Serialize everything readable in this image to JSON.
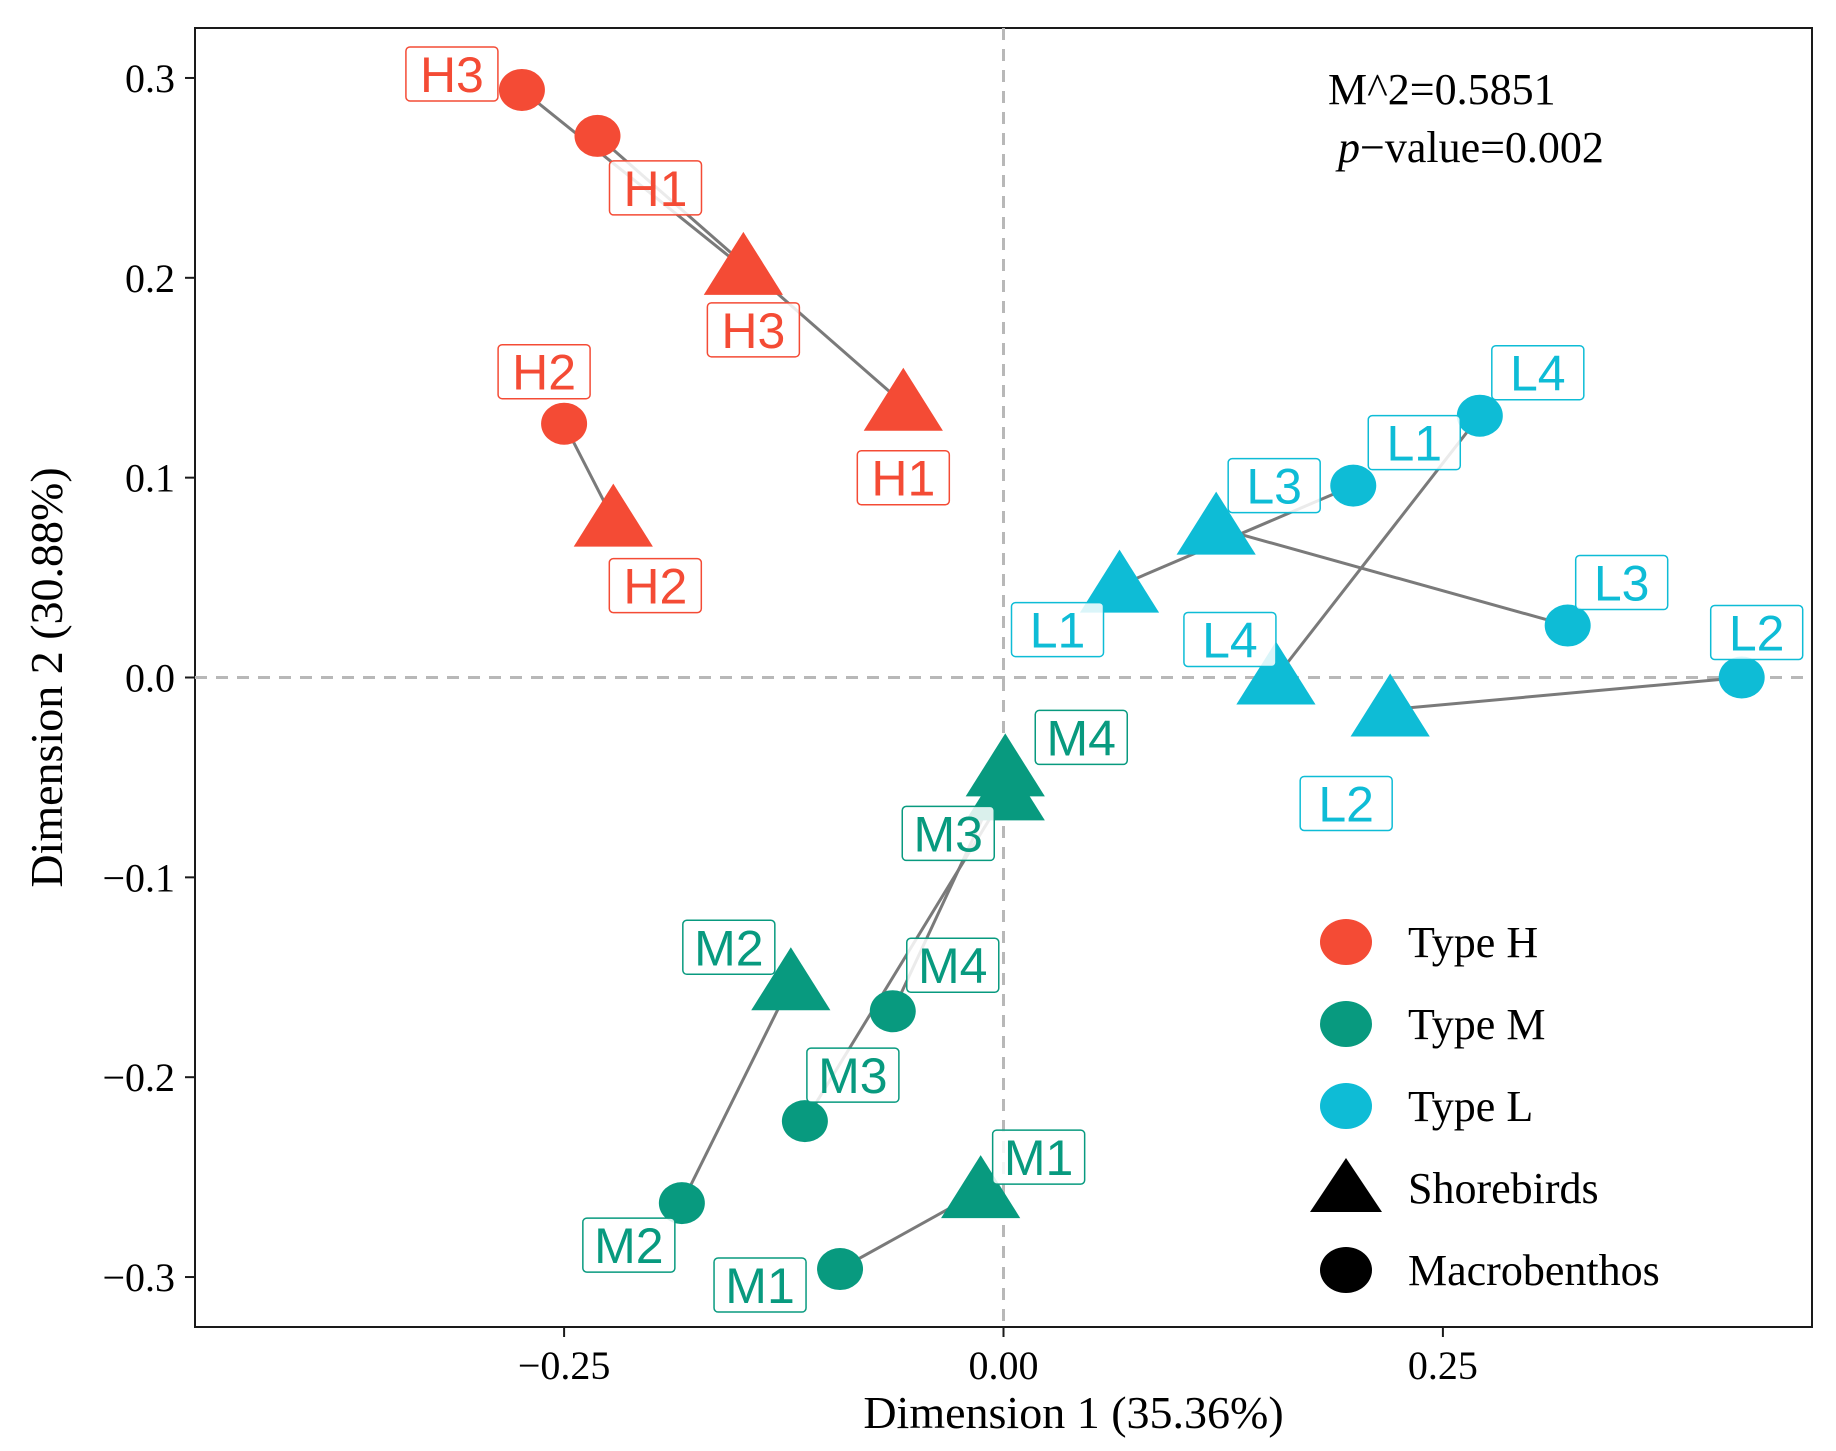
{
  "chart_data": {
    "type": "scatter",
    "title": "",
    "xlabel": "Dimension 1 (35.36%)",
    "ylabel": "Dimension 2 (30.88%)",
    "xlim": [
      -0.46,
      0.46
    ],
    "ylim": [
      -0.325,
      0.325
    ],
    "x_ticks": [
      -0.25,
      0.0,
      0.25
    ],
    "x_tick_labels": [
      "−0.25",
      "0.00",
      "0.25"
    ],
    "y_ticks": [
      -0.3,
      -0.2,
      -0.1,
      0.0,
      0.1,
      0.2,
      0.3
    ],
    "y_tick_labels": [
      "−0.3",
      "−0.2",
      "−0.1",
      "0.0",
      "0.1",
      "0.2",
      "0.3"
    ],
    "grid": false,
    "reference_lines": {
      "x": 0.0,
      "y": 0.0
    },
    "annotation": {
      "line1": "M^2=0.5851",
      "pvalue_italic": "p",
      "pvalue_rest": "−value=0.002"
    },
    "colors": {
      "H": "#f44b35",
      "M": "#089a7f",
      "L": "#0ebcd6"
    },
    "connector_color": "#7a7a7a",
    "legend": {
      "position": "bottom-right",
      "entries": [
        {
          "label": "Type H",
          "shape": "circle",
          "color": "#f44b35"
        },
        {
          "label": "Type M",
          "shape": "circle",
          "color": "#089a7f"
        },
        {
          "label": "Type L",
          "shape": "circle",
          "color": "#0ebcd6"
        },
        {
          "label": "Shorebirds",
          "shape": "triangle",
          "color": "#000000"
        },
        {
          "label": "Macrobenthos",
          "shape": "circle",
          "color": "#000000"
        }
      ]
    },
    "pairs": [
      {
        "site": "H1",
        "type": "H",
        "shorebirds": [
          -0.057,
          0.137
        ],
        "macrobenthos": [
          -0.231,
          0.271
        ]
      },
      {
        "site": "H2",
        "type": "H",
        "shorebirds": [
          -0.222,
          0.079
        ],
        "macrobenthos": [
          -0.25,
          0.127
        ]
      },
      {
        "site": "H3",
        "type": "H",
        "shorebirds": [
          -0.148,
          0.205
        ],
        "macrobenthos": [
          -0.274,
          0.294
        ]
      },
      {
        "site": "M1",
        "type": "M",
        "shorebirds": [
          -0.013,
          -0.257
        ],
        "macrobenthos": [
          -0.093,
          -0.296
        ]
      },
      {
        "site": "M2",
        "type": "M",
        "shorebirds": [
          -0.121,
          -0.153
        ],
        "macrobenthos": [
          -0.183,
          -0.263
        ]
      },
      {
        "site": "M3",
        "type": "M",
        "shorebirds": [
          0.001,
          -0.058
        ],
        "macrobenthos": [
          -0.113,
          -0.222
        ]
      },
      {
        "site": "M4",
        "type": "M",
        "shorebirds": [
          0.001,
          -0.046
        ],
        "macrobenthos": [
          -0.063,
          -0.167
        ]
      },
      {
        "site": "L1",
        "type": "L",
        "shorebirds": [
          0.066,
          0.046
        ],
        "macrobenthos": [
          0.199,
          0.096
        ]
      },
      {
        "site": "L2",
        "type": "L",
        "shorebirds": [
          0.22,
          -0.016
        ],
        "macrobenthos": [
          0.42,
          0.0
        ]
      },
      {
        "site": "L3",
        "type": "L",
        "shorebirds": [
          0.121,
          0.075
        ],
        "macrobenthos": [
          0.321,
          0.026
        ]
      },
      {
        "site": "L4",
        "type": "L",
        "shorebirds": [
          0.155,
          0.0
        ],
        "macrobenthos": [
          0.271,
          0.131
        ]
      }
    ]
  }
}
